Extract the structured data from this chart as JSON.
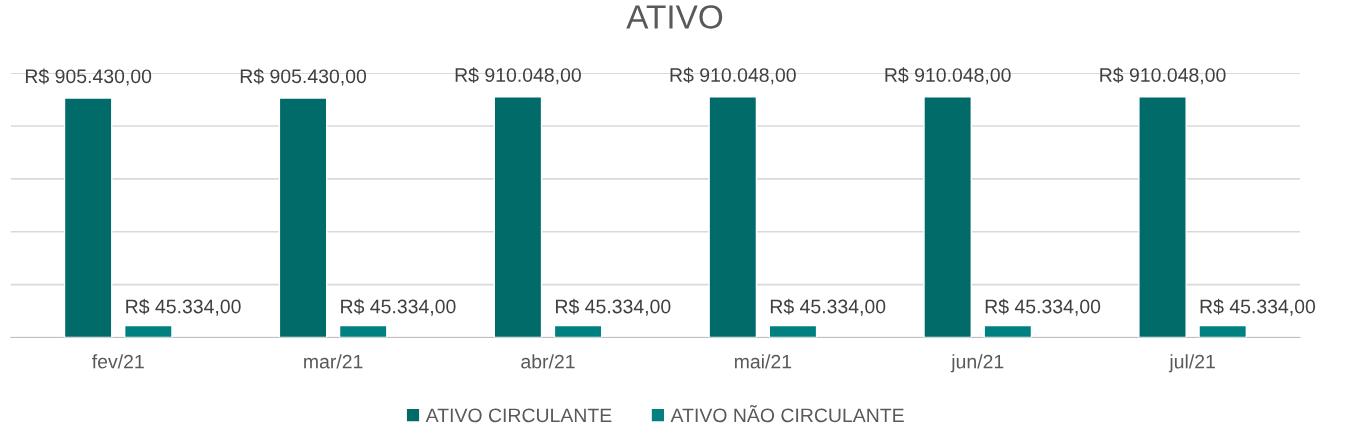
{
  "chart_data": {
    "type": "bar",
    "title": "ATIVO",
    "categories": [
      "fev/21",
      "mar/21",
      "abr/21",
      "mai/21",
      "jun/21",
      "jul/21"
    ],
    "series": [
      {
        "name": "ATIVO CIRCULANTE",
        "color": "#006b68",
        "values": [
          905430,
          905430,
          910048,
          910048,
          910048,
          910048
        ],
        "value_labels": [
          "R$ 905.430,00",
          "R$ 905.430,00",
          "R$ 910.048,00",
          "R$ 910.048,00",
          "R$ 910.048,00",
          "R$ 910.048,00"
        ]
      },
      {
        "name": "ATIVO NÃO CIRCULANTE",
        "color": "#008080",
        "values": [
          45334,
          45334,
          45334,
          45334,
          45334,
          45334
        ],
        "value_labels": [
          "R$ 45.334,00",
          "R$ 45.334,00",
          "R$ 45.334,00",
          "R$ 45.334,00",
          "R$ 45.334,00",
          "R$ 45.334,00"
        ]
      }
    ],
    "ylim": [
      0,
      1000000
    ],
    "yticks": [
      {
        "value": 0,
        "label": null
      },
      {
        "value": 200000,
        "label": null
      },
      {
        "value": 400000,
        "label": null
      },
      {
        "value": 600000,
        "label": null
      },
      {
        "value": 800000,
        "label": null
      },
      {
        "value": 1000000,
        "label": null
      }
    ],
    "grid": "y",
    "legend": "bottom",
    "tick_labels": "x"
  }
}
